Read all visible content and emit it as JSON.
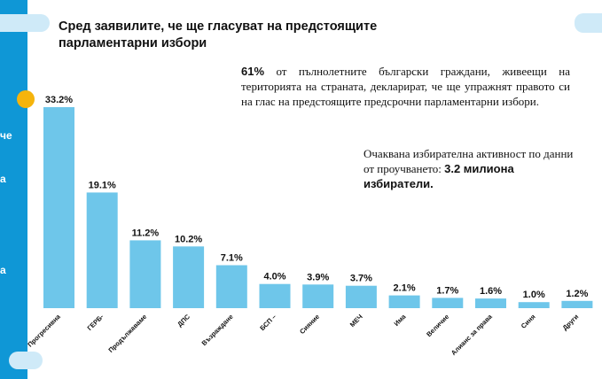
{
  "title": "Сред заявилите, че ще гласуват на предстоящите парламентарни избори",
  "note_1": {
    "highlight": "61%",
    "text": " от пълнолетните български граждани, живеещи на територията на страната, декларират, че ще упражнят правото си на глас на предстоящите предсрочни парламентарни избори."
  },
  "note_2": {
    "text": "Очаквана избирателна активност по данни от проучването: ",
    "highlight": "3.2 милиона избиратели."
  },
  "left_fragments": [
    "че",
    "а",
    "а"
  ],
  "colors": {
    "bar": "#6ec6ea",
    "accent": "#0f97d6",
    "dot": "#f5b40c"
  },
  "chart_data": {
    "type": "bar",
    "categories": [
      "Прогресивна",
      "ГЕРБ-",
      "Продължаваме",
      "ДПС",
      "Възраждане",
      "БСП –",
      "Сияние",
      "МЕЧ",
      "Има",
      "Величие",
      "Алианс за права",
      "Синя",
      "Други"
    ],
    "values": [
      33.2,
      19.1,
      11.2,
      10.2,
      7.1,
      4.0,
      3.9,
      3.7,
      2.1,
      1.7,
      1.6,
      1.0,
      1.2
    ],
    "value_labels": [
      "33.2%",
      "19.1%",
      "11.2%",
      "10.2%",
      "7.1%",
      "4.0%",
      "3.9%",
      "3.7%",
      "2.1%",
      "1.7%",
      "1.6%",
      "1.0%",
      "1.2%"
    ],
    "ylim": [
      0,
      33.2
    ],
    "grid": false
  }
}
